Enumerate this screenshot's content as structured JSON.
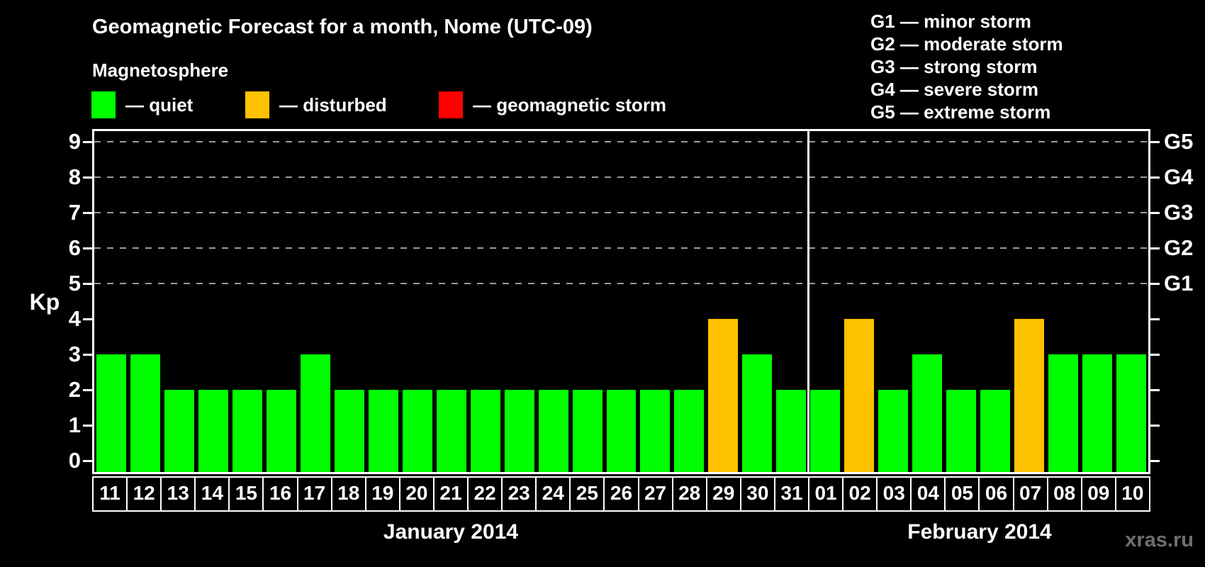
{
  "title": "Geomagnetic Forecast for a month, Nome (UTC-09)",
  "watermark": "xras.ru",
  "colors": {
    "background": "#000000",
    "axis": "#ffffff",
    "grid": "#9a9a9a",
    "quiet": "#00ff00",
    "disturbed": "#ffc200",
    "storm": "#ff0000",
    "watermark": "#6f6f6f"
  },
  "magnetosphere_legend": {
    "heading": "Magnetosphere",
    "items": [
      {
        "name": "quiet",
        "label": "— quiet",
        "color": "#00ff00"
      },
      {
        "name": "disturbed",
        "label": "— disturbed",
        "color": "#ffc200"
      },
      {
        "name": "storm",
        "label": "— geomagnetic storm",
        "color": "#ff0000"
      }
    ]
  },
  "storm_scale_legend": [
    "G1 — minor storm",
    "G2 — moderate storm",
    "G3 — strong storm",
    "G4 — severe storm",
    "G5 — extreme storm"
  ],
  "chart_data": {
    "type": "bar",
    "title": "Geomagnetic Forecast for a month, Nome (UTC-09)",
    "xlabel": "",
    "ylabel": "Kp",
    "ylim": [
      0,
      9
    ],
    "yticks": [
      0,
      1,
      2,
      3,
      4,
      5,
      6,
      7,
      8,
      9
    ],
    "grid_dashed_at_kp": [
      5,
      6,
      7,
      8,
      9
    ],
    "right_axis": [
      {
        "kp": 5,
        "label": "G1"
      },
      {
        "kp": 6,
        "label": "G2"
      },
      {
        "kp": 7,
        "label": "G3"
      },
      {
        "kp": 8,
        "label": "G4"
      },
      {
        "kp": 9,
        "label": "G5"
      }
    ],
    "months": [
      {
        "label": "January 2014",
        "days": 21
      },
      {
        "label": "February 2014",
        "days": 10
      }
    ],
    "bars": [
      {
        "day": "11",
        "kp": 3,
        "status": "quiet"
      },
      {
        "day": "12",
        "kp": 3,
        "status": "quiet"
      },
      {
        "day": "13",
        "kp": 2,
        "status": "quiet"
      },
      {
        "day": "14",
        "kp": 2,
        "status": "quiet"
      },
      {
        "day": "15",
        "kp": 2,
        "status": "quiet"
      },
      {
        "day": "16",
        "kp": 2,
        "status": "quiet"
      },
      {
        "day": "17",
        "kp": 3,
        "status": "quiet"
      },
      {
        "day": "18",
        "kp": 2,
        "status": "quiet"
      },
      {
        "day": "19",
        "kp": 2,
        "status": "quiet"
      },
      {
        "day": "20",
        "kp": 2,
        "status": "quiet"
      },
      {
        "day": "21",
        "kp": 2,
        "status": "quiet"
      },
      {
        "day": "22",
        "kp": 2,
        "status": "quiet"
      },
      {
        "day": "23",
        "kp": 2,
        "status": "quiet"
      },
      {
        "day": "24",
        "kp": 2,
        "status": "quiet"
      },
      {
        "day": "25",
        "kp": 2,
        "status": "quiet"
      },
      {
        "day": "26",
        "kp": 2,
        "status": "quiet"
      },
      {
        "day": "27",
        "kp": 2,
        "status": "quiet"
      },
      {
        "day": "28",
        "kp": 2,
        "status": "quiet"
      },
      {
        "day": "29",
        "kp": 4,
        "status": "disturbed"
      },
      {
        "day": "30",
        "kp": 3,
        "status": "quiet"
      },
      {
        "day": "31",
        "kp": 2,
        "status": "quiet"
      },
      {
        "day": "01",
        "kp": 2,
        "status": "quiet"
      },
      {
        "day": "02",
        "kp": 4,
        "status": "disturbed"
      },
      {
        "day": "03",
        "kp": 2,
        "status": "quiet"
      },
      {
        "day": "04",
        "kp": 3,
        "status": "quiet"
      },
      {
        "day": "05",
        "kp": 2,
        "status": "quiet"
      },
      {
        "day": "06",
        "kp": 2,
        "status": "quiet"
      },
      {
        "day": "07",
        "kp": 4,
        "status": "disturbed"
      },
      {
        "day": "08",
        "kp": 3,
        "status": "quiet"
      },
      {
        "day": "09",
        "kp": 3,
        "status": "quiet"
      },
      {
        "day": "10",
        "kp": 3,
        "status": "quiet"
      }
    ]
  }
}
